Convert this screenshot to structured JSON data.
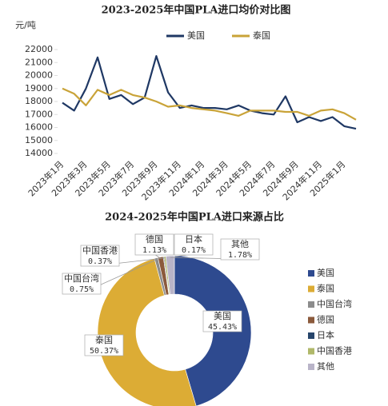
{
  "chart_data": [
    {
      "type": "line",
      "title": "2023-2025年中国PLA进口均价对比图",
      "y_label": "元/吨",
      "categories": [
        "2023年1月",
        null,
        "2023年3月",
        null,
        "2023年5月",
        null,
        "2023年7月",
        null,
        "2023年9月",
        null,
        "2023年11月",
        null,
        "2024年1月",
        null,
        "2024年3月",
        null,
        "2024年5月",
        null,
        "2024年7月",
        null,
        "2024年9月",
        null,
        "2024年11月",
        null,
        "2025年1月",
        null
      ],
      "series": [
        {
          "name": "美国",
          "color": "#1f3864",
          "values": [
            17900,
            17300,
            19000,
            21400,
            18200,
            18500,
            17800,
            18300,
            21500,
            18700,
            17500,
            17700,
            17500,
            17500,
            17400,
            17700,
            17300,
            17100,
            17000,
            18400,
            16400,
            16800,
            16500,
            16800,
            16100,
            15900
          ]
        },
        {
          "name": "泰国",
          "color": "#c9a338",
          "values": [
            19000,
            18600,
            17700,
            18900,
            18500,
            18900,
            18500,
            18300,
            18000,
            17600,
            17700,
            17500,
            17400,
            17300,
            17100,
            16900,
            17300,
            17300,
            17300,
            17200,
            17200,
            16900,
            17300,
            17400,
            17100,
            16600
          ]
        }
      ],
      "ylim": [
        14000,
        22000
      ],
      "yticks": [
        14000,
        15000,
        16000,
        17000,
        18000,
        19000,
        20000,
        21000,
        22000
      ]
    },
    {
      "type": "pie",
      "title": "2024-2025年中国PLA进口来源占比",
      "categories": [
        "美国",
        "泰国",
        "中国台湾",
        "德国",
        "日本",
        "中国香港",
        "其他"
      ],
      "values": [
        45.43,
        50.37,
        0.75,
        1.13,
        0.17,
        0.37,
        1.78
      ],
      "value_labels": [
        "45.43%",
        "50.37%",
        "0.75%",
        "1.13%",
        "0.17%",
        "0.37%",
        "1.78%"
      ],
      "colors": [
        "#2e4a8f",
        "#dcac35",
        "#8c8c8c",
        "#8b5a3c",
        "#27456b",
        "#b0b86a",
        "#b9b4c8"
      ]
    }
  ]
}
